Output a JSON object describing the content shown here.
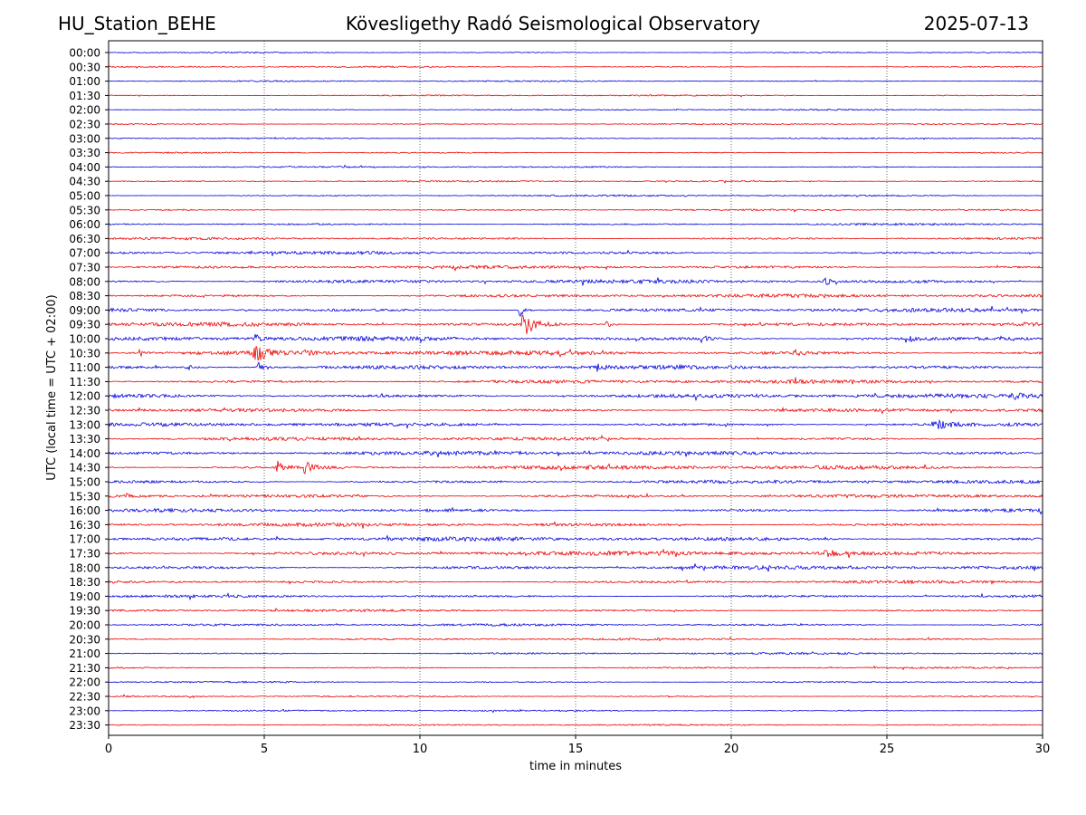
{
  "header": {
    "station": "HU_Station_BEHE",
    "title": "Kövesligethy Radó Seismological Observatory",
    "date": "2025-07-13"
  },
  "colors": {
    "even_trace": "#0000dd",
    "odd_trace": "#ee0000",
    "grid": "#000000"
  },
  "chart_data": {
    "type": "line",
    "title": "Kövesligethy Radó Seismological Observatory",
    "xlabel": "time in minutes",
    "ylabel": "UTC (local time = UTC + 02:00)",
    "xlim": [
      0,
      30
    ],
    "xticks": [
      0,
      5,
      10,
      15,
      20,
      25,
      30
    ],
    "vertical_grid": [
      5,
      10,
      15,
      20,
      25
    ],
    "grid": "vertical dotted",
    "legend": "none",
    "rows": [
      {
        "label": "00:00",
        "amp": 0.8
      },
      {
        "label": "00:30",
        "amp": 0.8
      },
      {
        "label": "01:00",
        "amp": 0.8
      },
      {
        "label": "01:30",
        "amp": 0.8
      },
      {
        "label": "02:00",
        "amp": 0.8
      },
      {
        "label": "02:30",
        "amp": 0.8
      },
      {
        "label": "03:00",
        "amp": 0.8
      },
      {
        "label": "03:30",
        "amp": 0.8
      },
      {
        "label": "04:00",
        "amp": 0.9
      },
      {
        "label": "04:30",
        "amp": 0.9
      },
      {
        "label": "05:00",
        "amp": 1.0
      },
      {
        "label": "05:30",
        "amp": 1.0
      },
      {
        "label": "06:00",
        "amp": 1.2
      },
      {
        "label": "06:30",
        "amp": 1.4
      },
      {
        "label": "07:00",
        "amp": 1.8
      },
      {
        "label": "07:30",
        "amp": 1.8
      },
      {
        "label": "08:00",
        "amp": 2.2
      },
      {
        "label": "08:30",
        "amp": 2.0
      },
      {
        "label": "09:00",
        "amp": 2.2
      },
      {
        "label": "09:30",
        "amp": 2.4
      },
      {
        "label": "10:00",
        "amp": 2.6
      },
      {
        "label": "10:30",
        "amp": 2.6
      },
      {
        "label": "11:00",
        "amp": 2.4
      },
      {
        "label": "11:30",
        "amp": 2.2
      },
      {
        "label": "12:00",
        "amp": 2.4
      },
      {
        "label": "12:30",
        "amp": 2.2
      },
      {
        "label": "13:00",
        "amp": 2.2
      },
      {
        "label": "13:30",
        "amp": 2.0
      },
      {
        "label": "14:00",
        "amp": 2.4
      },
      {
        "label": "14:30",
        "amp": 2.4
      },
      {
        "label": "15:00",
        "amp": 2.0
      },
      {
        "label": "15:30",
        "amp": 2.2
      },
      {
        "label": "16:00",
        "amp": 2.0
      },
      {
        "label": "16:30",
        "amp": 2.0
      },
      {
        "label": "17:00",
        "amp": 2.4
      },
      {
        "label": "17:30",
        "amp": 2.6
      },
      {
        "label": "18:00",
        "amp": 2.2
      },
      {
        "label": "18:30",
        "amp": 1.8
      },
      {
        "label": "19:00",
        "amp": 1.6
      },
      {
        "label": "19:30",
        "amp": 1.4
      },
      {
        "label": "20:00",
        "amp": 1.4
      },
      {
        "label": "20:30",
        "amp": 1.2
      },
      {
        "label": "21:00",
        "amp": 1.2
      },
      {
        "label": "21:30",
        "amp": 1.0
      },
      {
        "label": "22:00",
        "amp": 1.0
      },
      {
        "label": "22:30",
        "amp": 0.9
      },
      {
        "label": "23:00",
        "amp": 0.9
      },
      {
        "label": "23:30",
        "amp": 0.9
      }
    ],
    "events": [
      {
        "row": "09:30",
        "minute": 13.3,
        "duration": 1.0,
        "amp": 14
      },
      {
        "row": "09:00",
        "minute": 13.2,
        "duration": 0.5,
        "amp": 8
      },
      {
        "row": "10:30",
        "minute": 4.7,
        "duration": 1.0,
        "amp": 10
      },
      {
        "row": "10:00",
        "minute": 4.7,
        "duration": 0.4,
        "amp": 6
      },
      {
        "row": "11:00",
        "minute": 4.8,
        "duration": 0.5,
        "amp": 6
      },
      {
        "row": "10:30",
        "minute": 6.3,
        "duration": 0.4,
        "amp": 6
      },
      {
        "row": "10:30",
        "minute": 1.0,
        "duration": 0.3,
        "amp": 5
      },
      {
        "row": "14:30",
        "minute": 5.4,
        "duration": 0.4,
        "amp": 8
      },
      {
        "row": "14:30",
        "minute": 6.3,
        "duration": 0.8,
        "amp": 7
      },
      {
        "row": "13:00",
        "minute": 26.5,
        "duration": 1.2,
        "amp": 6
      },
      {
        "row": "10:00",
        "minute": 19.0,
        "duration": 0.6,
        "amp": 5
      },
      {
        "row": "10:00",
        "minute": 25.6,
        "duration": 0.6,
        "amp": 5
      },
      {
        "row": "09:30",
        "minute": 16.0,
        "duration": 0.4,
        "amp": 4
      },
      {
        "row": "11:00",
        "minute": 2.5,
        "duration": 0.4,
        "amp": 4
      },
      {
        "row": "10:30",
        "minute": 22.0,
        "duration": 0.5,
        "amp": 4
      },
      {
        "row": "11:00",
        "minute": 15.7,
        "duration": 0.4,
        "amp": 4
      },
      {
        "row": "17:30",
        "minute": 23.0,
        "duration": 1.0,
        "amp": 4
      },
      {
        "row": "08:00",
        "minute": 23.0,
        "duration": 0.5,
        "amp": 4
      },
      {
        "row": "12:00",
        "minute": 29.0,
        "duration": 1.0,
        "amp": 4
      },
      {
        "row": "15:30",
        "minute": 0.5,
        "duration": 0.6,
        "amp": 4
      }
    ]
  }
}
